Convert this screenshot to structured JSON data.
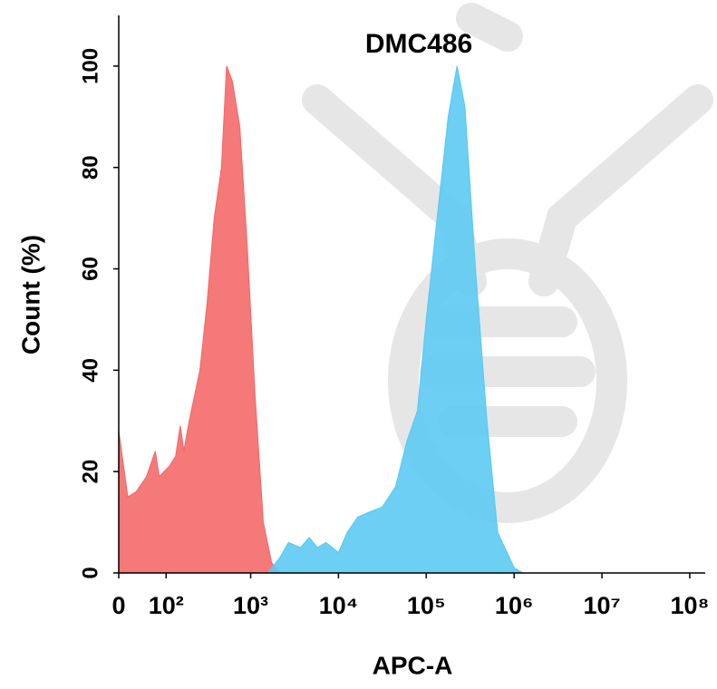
{
  "chart_data": {
    "type": "area",
    "title": "DMC486",
    "x_label": "APC-A",
    "y_label": "Count  (%)",
    "xscale": "logicle",
    "xlim": [
      0,
      150000000
    ],
    "ylim": [
      0,
      110
    ],
    "xticks": [
      0,
      {
        "value": 100,
        "label": "10²"
      },
      {
        "value": 1000,
        "label": "10³"
      },
      {
        "value": 10000,
        "label": "10⁴"
      },
      {
        "value": 100000,
        "label": "10⁵"
      },
      {
        "value": 1000000,
        "label": "10⁶"
      },
      {
        "value": 10000000,
        "label": "10⁷"
      },
      {
        "value": 100000000,
        "label": "10⁸"
      }
    ],
    "yticks": [
      0,
      20,
      40,
      60,
      80,
      100
    ],
    "series": [
      {
        "color": "#f46a6a",
        "x": [
          0,
          15,
          30,
          50,
          70,
          80,
          110,
          133,
          152,
          168,
          195,
          261,
          316,
          383,
          464,
          531,
          617,
          750,
          908,
          1120,
          1390,
          1730,
          2150
        ],
        "values": [
          28,
          15,
          16,
          19,
          24,
          19,
          21,
          23,
          29,
          24,
          30,
          40,
          53,
          70,
          80,
          100,
          97,
          88,
          65,
          35,
          10,
          2,
          0
        ]
      },
      {
        "color": "#5ccaf2",
        "x": [
          1580,
          2150,
          2700,
          3700,
          4640,
          5760,
          7200,
          10000,
          12600,
          16600,
          22400,
          31600,
          44700,
          60300,
          79400,
          100000,
          133000,
          178000,
          224000,
          275000,
          363000,
          490000,
          650000,
          1000000,
          1260000
        ],
        "values": [
          0,
          3,
          6,
          5,
          7,
          5,
          6,
          4,
          8,
          11,
          12,
          13,
          17,
          26,
          32,
          50,
          70,
          90,
          100,
          92,
          60,
          30,
          8,
          1,
          0
        ]
      }
    ]
  }
}
